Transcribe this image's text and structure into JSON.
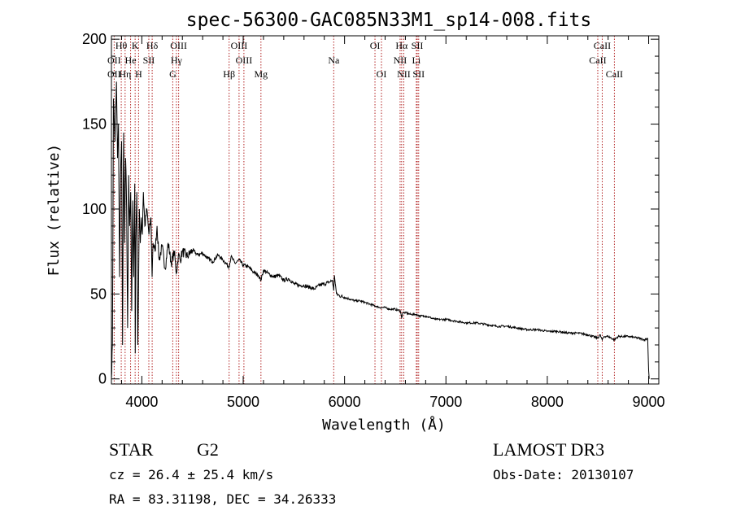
{
  "chart_data": {
    "type": "line",
    "title": "spec-56300-GAC085N33M1_sp14-008.fits",
    "xlabel": "Wavelength (Å)",
    "ylabel": "Flux (relative)",
    "xlim": [
      3700,
      9100
    ],
    "ylim": [
      -3,
      202
    ],
    "xticks": [
      4000,
      5000,
      6000,
      7000,
      8000,
      9000
    ],
    "yticks": [
      0,
      50,
      100,
      150,
      200
    ],
    "series": [
      {
        "name": "spectrum",
        "x": [
          3700,
          3710,
          3720,
          3735,
          3750,
          3760,
          3770,
          3780,
          3790,
          3800,
          3810,
          3820,
          3830,
          3840,
          3850,
          3860,
          3870,
          3880,
          3890,
          3900,
          3910,
          3920,
          3930,
          3935,
          3940,
          3950,
          3960,
          3968,
          3975,
          3985,
          3995,
          4005,
          4015,
          4030,
          4050,
          4070,
          4090,
          4101,
          4110,
          4130,
          4150,
          4170,
          4200,
          4230,
          4260,
          4290,
          4320,
          4340,
          4360,
          4380,
          4400,
          4450,
          4500,
          4550,
          4600,
          4650,
          4700,
          4750,
          4800,
          4861,
          4880,
          4920,
          4960,
          5000,
          5050,
          5100,
          5150,
          5175,
          5200,
          5250,
          5300,
          5350,
          5400,
          5450,
          5500,
          5550,
          5600,
          5650,
          5700,
          5750,
          5800,
          5850,
          5880,
          5893,
          5900,
          5920,
          5950,
          6000,
          6050,
          6100,
          6150,
          6200,
          6250,
          6300,
          6350,
          6400,
          6450,
          6500,
          6550,
          6563,
          6575,
          6600,
          6650,
          6700,
          6750,
          6800,
          6850,
          6900,
          6950,
          7000,
          7100,
          7200,
          7300,
          7400,
          7500,
          7600,
          7700,
          7800,
          7900,
          8000,
          8100,
          8200,
          8300,
          8400,
          8498,
          8520,
          8542,
          8560,
          8600,
          8662,
          8700,
          8800,
          8900,
          8960,
          8990,
          9000,
          9005
        ],
        "y": [
          0,
          20,
          165,
          140,
          175,
          130,
          150,
          60,
          120,
          140,
          20,
          145,
          80,
          130,
          100,
          30,
          120,
          90,
          110,
          40,
          105,
          60,
          115,
          15,
          80,
          110,
          20,
          55,
          100,
          80,
          95,
          85,
          110,
          90,
          100,
          85,
          95,
          60,
          80,
          75,
          90,
          70,
          78,
          65,
          80,
          68,
          75,
          62,
          73,
          70,
          75,
          72,
          76,
          73,
          74,
          71,
          69,
          73,
          70,
          66,
          72,
          68,
          70,
          67,
          66,
          63,
          61,
          58,
          64,
          62,
          60,
          61,
          58,
          59,
          56,
          55,
          55,
          54,
          53,
          55,
          56,
          57,
          58,
          52,
          61,
          50,
          49,
          48,
          47,
          46,
          46,
          45,
          44,
          43,
          42,
          42,
          41,
          41,
          40,
          36,
          39,
          39,
          38,
          38,
          37,
          37,
          36,
          35,
          35,
          35,
          34,
          33,
          33,
          32,
          31,
          31,
          30,
          29,
          29,
          28,
          28,
          27,
          27,
          26,
          24,
          26,
          23,
          25,
          25,
          23,
          25,
          25,
          24,
          23,
          24,
          5,
          0
        ]
      }
    ],
    "annotations": [
      {
        "label": "Hθ",
        "x": 3797,
        "row": 1
      },
      {
        "label": "OII",
        "x": 3727,
        "row": 2
      },
      {
        "label": "He",
        "x": 3889,
        "row": 2
      },
      {
        "label": "OII",
        "x": 3727,
        "row": 3
      },
      {
        "label": "Hη",
        "x": 3835,
        "row": 3
      },
      {
        "label": "K",
        "x": 3934,
        "row": 1
      },
      {
        "label": "H",
        "x": 3968,
        "row": 3
      },
      {
        "label": "SII",
        "x": 4069,
        "row": 2
      },
      {
        "label": "Hδ",
        "x": 4102,
        "row": 1
      },
      {
        "label": "OIII",
        "x": 4363,
        "row": 1
      },
      {
        "label": "Hγ",
        "x": 4341,
        "row": 2
      },
      {
        "label": "G",
        "x": 4305,
        "row": 3
      },
      {
        "label": "Hβ",
        "x": 4861,
        "row": 3
      },
      {
        "label": "OIII",
        "x": 4959,
        "row": 1
      },
      {
        "label": "OIII",
        "x": 5007,
        "row": 2
      },
      {
        "label": "Mg",
        "x": 5175,
        "row": 3
      },
      {
        "label": "Na",
        "x": 5893,
        "row": 2
      },
      {
        "label": "OI",
        "x": 6300,
        "row": 1
      },
      {
        "label": "OI",
        "x": 6364,
        "row": 3
      },
      {
        "label": "Hα",
        "x": 6563,
        "row": 1
      },
      {
        "label": "SII",
        "x": 6717,
        "row": 1
      },
      {
        "label": "NII",
        "x": 6548,
        "row": 2
      },
      {
        "label": "Li",
        "x": 6708,
        "row": 2
      },
      {
        "label": "NII",
        "x": 6584,
        "row": 3
      },
      {
        "label": "SII",
        "x": 6731,
        "row": 3
      },
      {
        "label": "CaII",
        "x": 8542,
        "row": 1
      },
      {
        "label": "CaII",
        "x": 8498,
        "row": 2
      },
      {
        "label": "CaII",
        "x": 8662,
        "row": 3
      }
    ],
    "line_markers": [
      3727,
      3797,
      3835,
      3889,
      3934,
      3968,
      4069,
      4102,
      4305,
      4341,
      4363,
      4861,
      4959,
      5007,
      5175,
      5893,
      6300,
      6364,
      6548,
      6563,
      6584,
      6708,
      6717,
      6731,
      8498,
      8542,
      8662
    ]
  },
  "info": {
    "object_type": "STAR",
    "subclass": "G2",
    "survey": "LAMOST DR3",
    "cz": "cz = 26.4 ± 25.4 km/s",
    "obs_date": "Obs-Date: 20130107",
    "coords": "RA =  83.31198, DEC =  34.26333"
  },
  "colors": {
    "marker": "#b22222",
    "spectrum": "#000000",
    "axis": "#000000"
  }
}
